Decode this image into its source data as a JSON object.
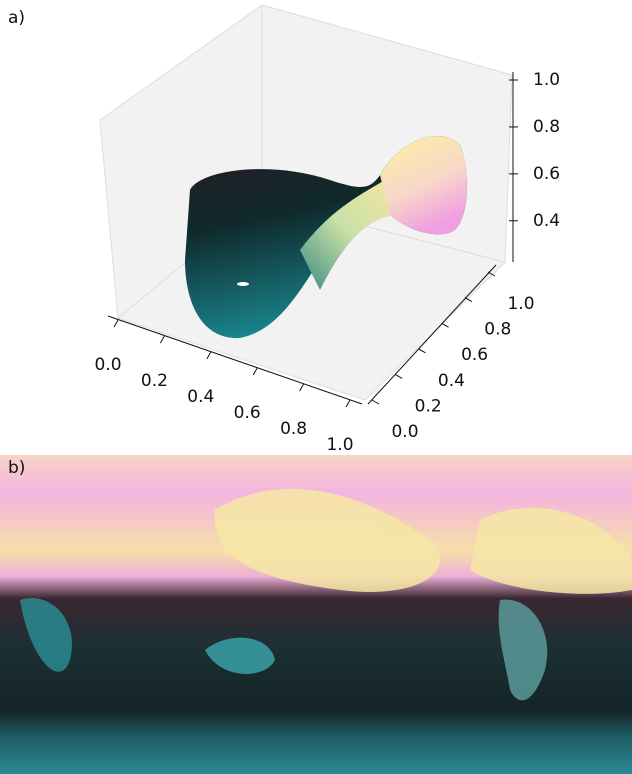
{
  "chart_data": {
    "type": "scatter3d",
    "panel_labels": [
      "a)",
      "b)"
    ],
    "xlim": [
      0,
      1
    ],
    "ylim": [
      0,
      1
    ],
    "zlim": [
      0.25,
      1
    ],
    "xticks": [
      {
        "value": 0,
        "label": "0.0"
      },
      {
        "value": 0.2,
        "label": "0.2"
      },
      {
        "value": 0.4,
        "label": "0.4"
      },
      {
        "value": 0.6,
        "label": "0.6"
      },
      {
        "value": 0.8,
        "label": "0.8"
      },
      {
        "value": 1,
        "label": "1.0"
      }
    ],
    "yticks": [
      {
        "value": 0,
        "label": "0.0"
      },
      {
        "value": 0.2,
        "label": "0.2"
      },
      {
        "value": 0.4,
        "label": "0.4"
      },
      {
        "value": 0.6,
        "label": "0.6"
      },
      {
        "value": 0.8,
        "label": "0.8"
      },
      {
        "value": 1,
        "label": "1.0"
      }
    ],
    "zticks": [
      {
        "value": 0.4,
        "label": "0.4"
      },
      {
        "value": 0.6,
        "label": "0.6"
      },
      {
        "value": 0.8,
        "label": "0.8"
      },
      {
        "value": 1,
        "label": "1.0"
      }
    ]
  }
}
